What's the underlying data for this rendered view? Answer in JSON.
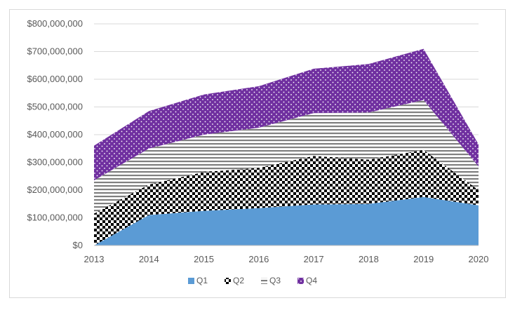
{
  "chart_data": {
    "type": "area",
    "stacked": true,
    "title": "",
    "xlabel": "",
    "ylabel": "",
    "categories": [
      "2013",
      "2014",
      "2015",
      "2016",
      "2017",
      "2018",
      "2019",
      "2020"
    ],
    "ylim": [
      0,
      800000000
    ],
    "y_ticks": [
      {
        "value": 0,
        "label": "$0"
      },
      {
        "value": 100000000,
        "label": "$100,000,000"
      },
      {
        "value": 200000000,
        "label": "$200,000,000"
      },
      {
        "value": 300000000,
        "label": "$300,000,000"
      },
      {
        "value": 400000000,
        "label": "$400,000,000"
      },
      {
        "value": 500000000,
        "label": "$500,000,000"
      },
      {
        "value": 600000000,
        "label": "$600,000,000"
      },
      {
        "value": 700000000,
        "label": "$700,000,000"
      },
      {
        "value": 800000000,
        "label": "$800,000,000"
      }
    ],
    "grid": true,
    "legend_position": "bottom",
    "series": [
      {
        "name": "Q1",
        "pattern": "solid",
        "color": "#5b9bd5",
        "values": [
          0,
          110000000,
          125000000,
          135000000,
          148000000,
          150000000,
          175000000,
          145000000
        ]
      },
      {
        "name": "Q2",
        "pattern": "checker",
        "color": "#000000",
        "values": [
          115000000,
          110000000,
          140000000,
          145000000,
          175000000,
          160000000,
          170000000,
          55000000
        ]
      },
      {
        "name": "Q3",
        "pattern": "horizontal-stripes",
        "color": "#7f7f7f",
        "values": [
          120000000,
          130000000,
          135000000,
          145000000,
          155000000,
          170000000,
          180000000,
          85000000
        ]
      },
      {
        "name": "Q4",
        "pattern": "dotted",
        "color": "#7030a0",
        "values": [
          125000000,
          135000000,
          145000000,
          150000000,
          160000000,
          175000000,
          185000000,
          80000000
        ]
      }
    ]
  }
}
